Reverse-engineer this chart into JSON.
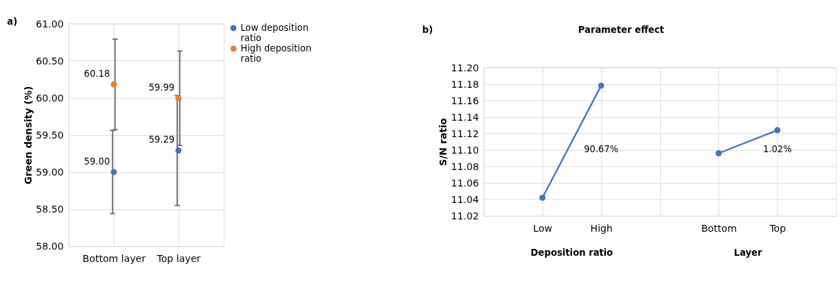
{
  "chart_data": [
    {
      "type": "scatter",
      "annotations": [
        "a)"
      ],
      "ylabel": "Green density (%)",
      "categories": [
        "Bottom layer",
        "Top layer"
      ],
      "series": [
        {
          "name": "Low deposition ratio",
          "color": "#4472c4",
          "values": [
            59.0,
            59.29
          ],
          "errors": [
            [
              58.44,
              59.56
            ],
            [
              58.55,
              60.03
            ]
          ],
          "value_labels": [
            "59.00",
            "59.29"
          ]
        },
        {
          "name": "High deposition ratio",
          "color": "#ed7d31",
          "values": [
            60.18,
            59.99
          ],
          "errors": [
            [
              59.57,
              60.79
            ],
            [
              59.36,
              60.63
            ]
          ],
          "value_labels": [
            "60.18",
            "59.99"
          ]
        }
      ],
      "ylim": [
        58,
        61
      ],
      "yticks": [
        {
          "value": 58,
          "label": "58.00"
        },
        {
          "value": 58.5,
          "label": "58.50"
        },
        {
          "value": 59,
          "label": "59.00"
        },
        {
          "value": 59.5,
          "label": "59.50"
        },
        {
          "value": 60,
          "label": "60.00"
        },
        {
          "value": 60.5,
          "label": "60.50"
        },
        {
          "value": 61,
          "label": "61.00"
        }
      ],
      "grid": true,
      "legend": "top right",
      "marker": "circle"
    },
    {
      "type": "line",
      "title": "Parameter effect",
      "annotations": [
        "b)",
        "Deposition ratio",
        "Layer",
        "90.67%",
        "1.02%"
      ],
      "ylabel": "S/N ratio",
      "categories": [
        "Low",
        "High",
        null,
        "Bottom",
        "Top"
      ],
      "series": [
        {
          "color": "#4472c4",
          "values": [
            11.042,
            11.178,
            null,
            null,
            null
          ]
        },
        {
          "color": "#4472c4",
          "values": [
            null,
            null,
            null,
            11.096,
            11.124
          ]
        }
      ],
      "ylim": [
        11.02,
        11.2
      ],
      "yticks": [
        {
          "value": 11.02,
          "label": "11.02"
        },
        {
          "value": 11.04,
          "label": "11.04"
        },
        {
          "value": 11.06,
          "label": "11.06"
        },
        {
          "value": 11.08,
          "label": "11.08"
        },
        {
          "value": 11.1,
          "label": "11.10"
        },
        {
          "value": 11.12,
          "label": "11.12"
        },
        {
          "value": 11.14,
          "label": "11.14"
        },
        {
          "value": 11.16,
          "label": "11.16"
        },
        {
          "value": 11.18,
          "label": "11.18"
        },
        {
          "value": 11.2,
          "label": "11.20"
        }
      ],
      "grid": true,
      "marker": "circle",
      "line_style": "solid"
    }
  ]
}
